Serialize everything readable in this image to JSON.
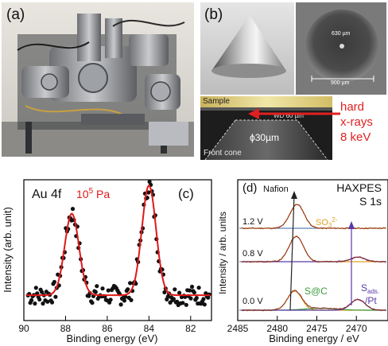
{
  "panel_a": {
    "label": "(a)"
  },
  "panel_b": {
    "label": "(b)",
    "aperture_label": "630 µm",
    "cone_width_label": "900 µm",
    "sample_label": "Sample",
    "wd_label": "WD 60 µm",
    "diameter_label": "ϕ30µm",
    "front_cone_label": "Front cone",
    "xray_lines": [
      "hard",
      "x-rays",
      "8 keV"
    ],
    "colors": {
      "xray": "#e02020"
    }
  },
  "panel_c": {
    "label": "(c)",
    "title": "Au 4f",
    "pressure_base": "10",
    "pressure_exp": "5",
    "pressure_unit": " Pa",
    "xlabel": "Binding energy (eV)",
    "ylabel": "Intensity (arb. unit)",
    "xticks": [
      "90",
      "88",
      "86",
      "84",
      "82"
    ],
    "colors": {
      "fit": "#e01818",
      "points": "#111111",
      "pressure": "#e01818"
    }
  },
  "panel_d": {
    "label": "(d)",
    "title_line1": "HAXPES",
    "title_line2": "S 1s",
    "nafion_label": "Nafion",
    "so3_base": "SO",
    "so3_sub": "3",
    "so3_sup": "2-",
    "sc_label": "S@C",
    "sads_base": "S",
    "sads_sub": "ads.",
    "pt_label": "/Pt",
    "voltages": [
      "1.2 V",
      "0.8 V",
      "0.0 V"
    ],
    "xlabel": "Binding energy / eV",
    "ylabel": "Intensity / arb. units",
    "xticks": [
      "2485",
      "2480",
      "2475",
      "2470"
    ],
    "colors": {
      "so3": "#e0a020",
      "sc": "#3a9a3a",
      "sads": "#5a3aa8",
      "arrow": "#5a3aa8"
    }
  },
  "chart_data": [
    {
      "type": "scatter",
      "title": "Au 4f",
      "xlabel": "Binding energy (eV)",
      "ylabel": "Intensity (arb. unit)",
      "xlim": [
        90,
        81
      ],
      "x_reversed": true,
      "ylim": [
        0,
        1
      ],
      "peaks": [
        {
          "position": 87.7,
          "height": 0.58,
          "fwhm": 0.8
        },
        {
          "position": 84.0,
          "height": 0.78,
          "fwhm": 0.8
        }
      ],
      "baseline": 0.18,
      "series": [
        {
          "name": "data",
          "values": "scattered points around fit"
        },
        {
          "name": "fit",
          "values": "sum of two peaks on baseline"
        }
      ]
    },
    {
      "type": "line",
      "xlabel": "Binding energy / eV",
      "ylabel": "Intensity / arb. units",
      "xlim": [
        2485,
        2466
      ],
      "x_reversed": true,
      "series": [
        {
          "name": "1.2 V",
          "offset": 2,
          "peaks": [
            {
              "position": 2477.5,
              "height": 1.0
            }
          ]
        },
        {
          "name": "0.8 V",
          "offset": 1,
          "peaks": [
            {
              "position": 2477.6,
              "height": 1.0
            },
            {
              "position": 2469.8,
              "height": 0.18
            }
          ]
        },
        {
          "name": "0.0 V",
          "offset": 0,
          "peaks": [
            {
              "position": 2477.8,
              "height": 0.8
            },
            {
              "position": 2469.8,
              "height": 0.45
            }
          ]
        }
      ]
    }
  ]
}
